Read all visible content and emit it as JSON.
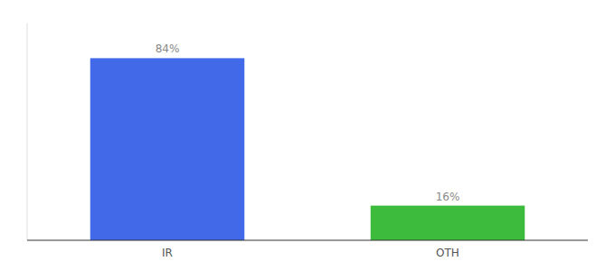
{
  "chart_data": {
    "type": "bar",
    "categories": [
      "IR",
      "OTH"
    ],
    "values": [
      84,
      16
    ],
    "value_labels": [
      "84%",
      "16%"
    ],
    "data_labels": true,
    "colors": [
      "#4169e8",
      "#3dbb3d"
    ],
    "ylim": [
      0,
      100
    ],
    "tick_labels": "x",
    "grid": false
  }
}
